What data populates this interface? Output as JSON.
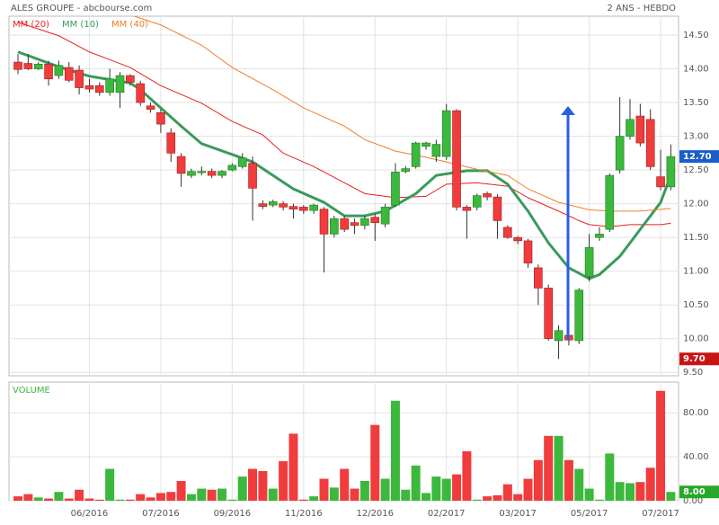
{
  "chart_data": {
    "type": "candlestick",
    "title": "ALES GROUPE - abcbourse.com",
    "subtitle": "2 ANS - HEBDO",
    "categories": [
      null,
      null,
      null,
      null,
      null,
      null,
      null,
      "06/2016",
      null,
      null,
      null,
      null,
      null,
      null,
      "07/2016",
      null,
      null,
      null,
      null,
      null,
      null,
      "09/2016",
      null,
      null,
      null,
      null,
      null,
      null,
      "11/2016",
      null,
      null,
      null,
      null,
      null,
      null,
      "12/2016",
      null,
      null,
      null,
      null,
      null,
      null,
      "02/2017",
      null,
      null,
      null,
      null,
      null,
      null,
      "03/2017",
      null,
      null,
      null,
      null,
      null,
      null,
      "05/2017",
      null,
      null,
      null,
      null,
      null,
      null,
      "07/2017",
      null
    ],
    "open": [
      14.1,
      14.08,
      14.0,
      14.07,
      13.9,
      14.02,
      13.98,
      13.75,
      13.75,
      13.65,
      13.65,
      13.9,
      13.78,
      13.45,
      13.35,
      13.05,
      12.7,
      12.42,
      12.46,
      12.48,
      12.42,
      12.5,
      12.55,
      12.6,
      12.0,
      11.98,
      12.0,
      11.96,
      11.95,
      11.9,
      11.92,
      11.55,
      11.78,
      11.72,
      11.68,
      11.8,
      11.7,
      11.98,
      12.48,
      12.55,
      12.85,
      12.7,
      12.7,
      13.38,
      11.95,
      11.95,
      12.15,
      12.1,
      11.65,
      11.5,
      11.45,
      11.05,
      10.75,
      9.97,
      10.05,
      9.97,
      10.92,
      11.5,
      11.62,
      12.5,
      13.0,
      13.3,
      13.25,
      12.4,
      12.25
    ],
    "high": [
      14.22,
      14.22,
      14.1,
      14.12,
      14.12,
      14.1,
      14.05,
      13.85,
      13.8,
      14.0,
      13.95,
      13.92,
      13.82,
      13.5,
      13.4,
      13.12,
      12.75,
      12.52,
      12.55,
      12.52,
      12.5,
      12.6,
      12.75,
      12.7,
      12.05,
      12.06,
      12.04,
      12.0,
      11.98,
      12.0,
      11.95,
      11.82,
      11.82,
      11.78,
      11.82,
      11.85,
      12.0,
      12.6,
      12.56,
      12.92,
      12.92,
      12.95,
      13.48,
      13.4,
      11.98,
      12.15,
      12.18,
      12.14,
      11.68,
      11.52,
      11.48,
      11.1,
      10.8,
      10.2,
      10.12,
      10.75,
      11.55,
      11.65,
      12.45,
      13.58,
      13.55,
      13.48,
      13.4,
      12.8,
      12.88
    ],
    "low": [
      13.92,
      13.98,
      13.98,
      13.75,
      13.85,
      13.8,
      13.62,
      13.65,
      13.6,
      13.6,
      13.42,
      13.75,
      13.45,
      13.35,
      13.05,
      12.62,
      12.25,
      12.38,
      12.42,
      12.38,
      12.38,
      12.48,
      12.52,
      11.75,
      11.92,
      11.95,
      11.9,
      11.78,
      11.85,
      11.85,
      10.98,
      11.5,
      11.58,
      11.55,
      11.62,
      11.45,
      11.65,
      11.95,
      12.45,
      12.52,
      12.8,
      12.62,
      12.65,
      11.9,
      11.48,
      11.9,
      12.05,
      11.48,
      11.48,
      11.4,
      11.05,
      10.5,
      9.97,
      9.7,
      9.9,
      9.92,
      10.85,
      11.45,
      11.58,
      12.45,
      12.95,
      12.85,
      12.5,
      12.2,
      12.2
    ],
    "close": [
      13.99,
      14.0,
      14.07,
      13.85,
      14.05,
      13.83,
      13.72,
      13.7,
      13.65,
      13.85,
      13.9,
      13.8,
      13.5,
      13.4,
      13.18,
      12.75,
      12.45,
      12.48,
      12.48,
      12.42,
      12.48,
      12.57,
      12.68,
      12.23,
      11.96,
      12.03,
      11.95,
      11.92,
      11.9,
      11.98,
      11.55,
      11.78,
      11.62,
      11.68,
      11.78,
      11.72,
      11.95,
      12.47,
      12.52,
      12.9,
      12.9,
      12.88,
      13.38,
      11.95,
      11.9,
      12.12,
      12.1,
      11.75,
      11.5,
      11.45,
      11.12,
      10.75,
      10.0,
      10.12,
      9.98,
      10.72,
      11.35,
      11.55,
      12.42,
      13.0,
      13.25,
      12.9,
      12.55,
      12.25,
      12.7
    ],
    "up_color": "#3cb83c",
    "down_color": "#f03c3c",
    "series": [
      {
        "name": "MM (20)",
        "color": "#e8211e",
        "width": 1,
        "x": [
          0,
          4,
          7,
          11,
          14,
          18,
          21,
          24,
          26,
          29,
          32,
          34,
          37,
          40,
          42,
          45,
          48,
          50,
          53,
          55,
          56,
          58,
          60,
          63,
          64
        ],
        "values": [
          14.69,
          14.49,
          14.25,
          14.02,
          13.75,
          13.49,
          13.22,
          13.02,
          12.75,
          12.55,
          12.31,
          12.15,
          12.09,
          12.11,
          12.29,
          12.31,
          12.26,
          12.09,
          11.89,
          11.75,
          11.69,
          11.66,
          11.69,
          11.69,
          11.71
        ]
      },
      {
        "name": "MM (10)",
        "color": "#3a9a5c",
        "width": 3,
        "x": [
          0,
          4,
          7,
          11,
          12,
          14,
          16,
          18,
          21,
          23,
          25,
          27,
          30,
          32,
          34,
          36,
          39,
          41,
          44,
          46,
          48,
          50,
          52,
          54,
          56,
          57,
          59,
          61,
          63,
          64
        ],
        "values": [
          14.25,
          14.03,
          13.89,
          13.79,
          13.69,
          13.42,
          13.15,
          12.89,
          12.73,
          12.62,
          12.42,
          12.22,
          12.02,
          11.82,
          11.82,
          11.89,
          12.15,
          12.42,
          12.49,
          12.49,
          12.29,
          11.89,
          11.42,
          11.05,
          10.89,
          10.95,
          11.22,
          11.62,
          12.02,
          12.42
        ]
      },
      {
        "name": "MM (40)",
        "color": "#f07d2a",
        "width": 1,
        "x": [
          10,
          14,
          18,
          21,
          25,
          28,
          32,
          34,
          37,
          40,
          42,
          45,
          48,
          50,
          53,
          56,
          58,
          61,
          64
        ],
        "values": [
          14.85,
          14.65,
          14.35,
          14.02,
          13.69,
          13.42,
          13.15,
          12.95,
          12.78,
          12.69,
          12.62,
          12.51,
          12.42,
          12.22,
          12.02,
          11.91,
          11.89,
          11.89,
          11.93
        ]
      }
    ],
    "ylim": [
      9.45,
      14.78
    ],
    "yticks": [
      {
        "value": 9.5,
        "label": "9.50"
      },
      {
        "value": 10,
        "label": "10.00"
      },
      {
        "value": 10.5,
        "label": "10.50"
      },
      {
        "value": 11,
        "label": "11.00"
      },
      {
        "value": 11.5,
        "label": "11.50"
      },
      {
        "value": 12,
        "label": "12.00"
      },
      {
        "value": 12.5,
        "label": "12.50"
      },
      {
        "value": 13,
        "label": "13.00"
      },
      {
        "value": 13.5,
        "label": "13.50"
      },
      {
        "value": 14,
        "label": "14.00"
      },
      {
        "value": 14.5,
        "label": "14.50"
      }
    ],
    "last_price": {
      "value": 12.7,
      "label": "12.70",
      "color": "#1a5fc8"
    },
    "min_price": {
      "value": 9.7,
      "label": "9.70",
      "color": "#c81414"
    },
    "grid": true,
    "volume": {
      "title": "VOLUME",
      "values": [
        4,
        6,
        3,
        2,
        8,
        2,
        10,
        2,
        1,
        29,
        1,
        1,
        6,
        3,
        7,
        8,
        18,
        6,
        11,
        10,
        11,
        1,
        22,
        29,
        27,
        11,
        36,
        61,
        1,
        4,
        20,
        12,
        29,
        11,
        18,
        69,
        20,
        91,
        10,
        32,
        7,
        22,
        20,
        24,
        45,
        1,
        4,
        5,
        15,
        6,
        20,
        37,
        59,
        59,
        37,
        29,
        11,
        1,
        43,
        17,
        16,
        17,
        30,
        100,
        8
      ],
      "ylim": [
        0,
        108
      ],
      "yticks": [
        {
          "value": 0,
          "label": "0.00"
        },
        {
          "value": 40,
          "label": "40.00"
        },
        {
          "value": 80,
          "label": "80.00"
        }
      ],
      "last": {
        "value": 8,
        "label": "8.00",
        "color": "#28a828"
      }
    }
  }
}
